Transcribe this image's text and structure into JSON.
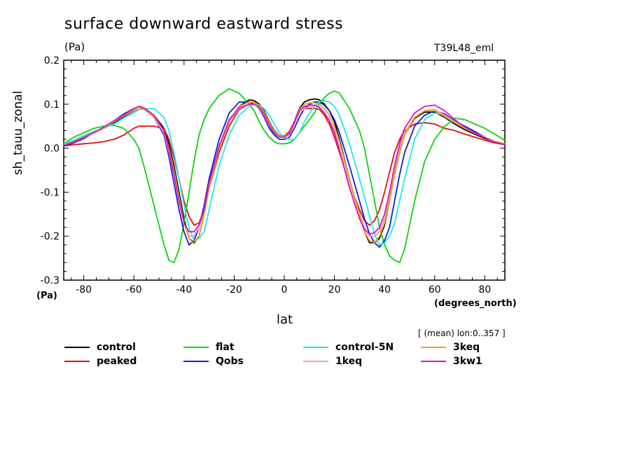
{
  "title": "surface downward eastward stress",
  "units_label": "(Pa)",
  "run_label": "T39L48_eml",
  "region_note": "[ (mean) lon:0..357 ]",
  "chart_data": {
    "type": "line",
    "title": "surface downward eastward stress",
    "xlabel": "lat",
    "xunits": "(degrees_north)",
    "ylabel": "sh_tauu_zonal",
    "yunits": "(Pa)",
    "xlim": [
      -88,
      88
    ],
    "ylim": [
      -0.3,
      0.2
    ],
    "xticks": [
      -80,
      -60,
      -40,
      -20,
      0,
      20,
      40,
      60,
      80
    ],
    "yticks": [
      -0.3,
      -0.2,
      -0.1,
      0.0,
      0.1,
      0.2
    ],
    "ytick_labels": [
      "-0.3",
      "-0.2",
      "-0.1",
      "0.0",
      "0.1",
      "0.2"
    ],
    "x": [
      -88,
      -84,
      -80,
      -76,
      -72,
      -68,
      -64,
      -60,
      -58,
      -56,
      -52,
      -48,
      -46,
      -44,
      -42,
      -40,
      -38,
      -36,
      -34,
      -32,
      -30,
      -26,
      -22,
      -18,
      -14,
      -12,
      -10,
      -8,
      -6,
      -4,
      -2,
      0,
      2,
      4,
      6,
      8,
      10,
      12,
      14,
      16,
      18,
      20,
      22,
      26,
      30,
      32,
      34,
      36,
      38,
      40,
      42,
      44,
      46,
      48,
      52,
      56,
      60,
      64,
      68,
      72,
      76,
      80,
      84,
      88
    ],
    "series": [
      {
        "name": "control",
        "color": "#000000",
        "values": [
          0.008,
          0.015,
          0.025,
          0.035,
          0.045,
          0.058,
          0.072,
          0.085,
          0.09,
          0.088,
          0.075,
          0.045,
          0.01,
          -0.04,
          -0.1,
          -0.16,
          -0.205,
          -0.215,
          -0.2,
          -0.15,
          -0.09,
          0.0,
          0.06,
          0.095,
          0.11,
          0.108,
          0.1,
          0.085,
          0.06,
          0.04,
          0.028,
          0.028,
          0.035,
          0.06,
          0.09,
          0.105,
          0.11,
          0.112,
          0.11,
          0.1,
          0.085,
          0.06,
          0.02,
          -0.07,
          -0.15,
          -0.19,
          -0.215,
          -0.215,
          -0.205,
          -0.175,
          -0.12,
          -0.06,
          -0.01,
          0.03,
          0.068,
          0.082,
          0.082,
          0.07,
          0.055,
          0.042,
          0.032,
          0.022,
          0.015,
          0.01
        ]
      },
      {
        "name": "peaked",
        "color": "#e01010",
        "values": [
          0.005,
          0.008,
          0.01,
          0.012,
          0.015,
          0.02,
          0.03,
          0.045,
          0.05,
          0.05,
          0.05,
          0.045,
          0.02,
          -0.02,
          -0.07,
          -0.12,
          -0.155,
          -0.175,
          -0.17,
          -0.14,
          -0.09,
          -0.01,
          0.05,
          0.088,
          0.1,
          0.1,
          0.095,
          0.08,
          0.055,
          0.038,
          0.028,
          0.028,
          0.038,
          0.06,
          0.08,
          0.09,
          0.09,
          0.09,
          0.088,
          0.075,
          0.055,
          0.025,
          -0.01,
          -0.08,
          -0.14,
          -0.165,
          -0.175,
          -0.165,
          -0.14,
          -0.1,
          -0.055,
          -0.01,
          0.02,
          0.04,
          0.055,
          0.058,
          0.055,
          0.045,
          0.04,
          0.032,
          0.025,
          0.018,
          0.012,
          0.008
        ]
      },
      {
        "name": "flat",
        "color": "#10d010",
        "values": [
          0.01,
          0.025,
          0.035,
          0.045,
          0.05,
          0.052,
          0.045,
          0.02,
          0.0,
          -0.04,
          -0.13,
          -0.22,
          -0.255,
          -0.26,
          -0.23,
          -0.17,
          -0.1,
          -0.03,
          0.03,
          0.065,
          0.09,
          0.12,
          0.135,
          0.125,
          0.1,
          0.085,
          0.06,
          0.04,
          0.025,
          0.015,
          0.01,
          0.01,
          0.012,
          0.02,
          0.035,
          0.05,
          0.065,
          0.08,
          0.1,
          0.115,
          0.125,
          0.13,
          0.125,
          0.09,
          0.04,
          0.0,
          -0.06,
          -0.12,
          -0.18,
          -0.22,
          -0.245,
          -0.255,
          -0.26,
          -0.23,
          -0.12,
          -0.03,
          0.02,
          0.05,
          0.068,
          0.065,
          0.055,
          0.045,
          0.032,
          0.018
        ]
      },
      {
        "name": "Qobs",
        "color": "#1020d0",
        "values": [
          0.005,
          0.012,
          0.022,
          0.035,
          0.048,
          0.062,
          0.078,
          0.09,
          0.095,
          0.09,
          0.07,
          0.03,
          -0.02,
          -0.08,
          -0.14,
          -0.19,
          -0.22,
          -0.21,
          -0.18,
          -0.13,
          -0.07,
          0.02,
          0.08,
          0.105,
          0.105,
          0.1,
          0.09,
          0.07,
          0.045,
          0.03,
          0.02,
          0.02,
          0.025,
          0.045,
          0.07,
          0.09,
          0.1,
          0.105,
          0.105,
          0.098,
          0.085,
          0.065,
          0.035,
          -0.04,
          -0.12,
          -0.16,
          -0.195,
          -0.215,
          -0.225,
          -0.21,
          -0.18,
          -0.12,
          -0.06,
          -0.01,
          0.05,
          0.075,
          0.085,
          0.078,
          0.062,
          0.05,
          0.038,
          0.025,
          0.015,
          0.008
        ]
      },
      {
        "name": "control-5N",
        "color": "#20e8e8",
        "values": [
          0.01,
          0.018,
          0.028,
          0.038,
          0.045,
          0.055,
          0.068,
          0.08,
          0.088,
          0.09,
          0.09,
          0.07,
          0.04,
          -0.01,
          -0.07,
          -0.13,
          -0.18,
          -0.21,
          -0.205,
          -0.19,
          -0.14,
          -0.04,
          0.03,
          0.075,
          0.095,
          0.1,
          0.098,
          0.09,
          0.075,
          0.055,
          0.035,
          0.025,
          0.02,
          0.02,
          0.035,
          0.06,
          0.08,
          0.095,
          0.105,
          0.108,
          0.105,
          0.095,
          0.075,
          0.01,
          -0.07,
          -0.11,
          -0.155,
          -0.195,
          -0.22,
          -0.215,
          -0.2,
          -0.17,
          -0.12,
          -0.07,
          0.02,
          0.065,
          0.08,
          0.075,
          0.06,
          0.048,
          0.035,
          0.025,
          0.015,
          0.01
        ]
      },
      {
        "name": "1keq",
        "color": "#e8a0d8",
        "values": [
          0.006,
          0.014,
          0.024,
          0.034,
          0.046,
          0.06,
          0.074,
          0.086,
          0.09,
          0.088,
          0.07,
          0.035,
          -0.01,
          -0.06,
          -0.12,
          -0.17,
          -0.2,
          -0.2,
          -0.18,
          -0.14,
          -0.08,
          0.0,
          0.06,
          0.09,
          0.1,
          0.098,
          0.092,
          0.075,
          0.05,
          0.035,
          0.026,
          0.026,
          0.032,
          0.055,
          0.08,
          0.09,
          0.094,
          0.095,
          0.092,
          0.08,
          0.065,
          0.04,
          0.0,
          -0.08,
          -0.15,
          -0.18,
          -0.2,
          -0.2,
          -0.19,
          -0.16,
          -0.11,
          -0.05,
          0.0,
          0.035,
          0.07,
          0.085,
          0.088,
          0.075,
          0.06,
          0.045,
          0.035,
          0.025,
          0.015,
          0.01
        ]
      },
      {
        "name": "3keq",
        "color": "#e8a810",
        "values": [
          0.007,
          0.015,
          0.025,
          0.035,
          0.046,
          0.06,
          0.074,
          0.087,
          0.09,
          0.088,
          0.072,
          0.04,
          0.0,
          -0.05,
          -0.11,
          -0.17,
          -0.205,
          -0.218,
          -0.2,
          -0.15,
          -0.09,
          0.0,
          0.06,
          0.095,
          0.105,
          0.104,
          0.098,
          0.083,
          0.058,
          0.038,
          0.027,
          0.027,
          0.034,
          0.058,
          0.088,
          0.1,
          0.103,
          0.103,
          0.1,
          0.09,
          0.075,
          0.05,
          0.015,
          -0.07,
          -0.15,
          -0.19,
          -0.21,
          -0.215,
          -0.2,
          -0.17,
          -0.12,
          -0.06,
          -0.01,
          0.03,
          0.07,
          0.085,
          0.085,
          0.072,
          0.058,
          0.045,
          0.034,
          0.024,
          0.015,
          0.01
        ]
      },
      {
        "name": "3kw1",
        "color": "#e010c8",
        "values": [
          0.006,
          0.014,
          0.024,
          0.036,
          0.048,
          0.062,
          0.076,
          0.09,
          0.095,
          0.092,
          0.075,
          0.04,
          -0.005,
          -0.06,
          -0.12,
          -0.17,
          -0.19,
          -0.19,
          -0.175,
          -0.14,
          -0.08,
          0.005,
          0.065,
          0.092,
          0.1,
          0.1,
          0.094,
          0.078,
          0.052,
          0.034,
          0.025,
          0.025,
          0.032,
          0.058,
          0.085,
          0.095,
          0.098,
          0.098,
          0.093,
          0.08,
          0.062,
          0.035,
          -0.005,
          -0.09,
          -0.16,
          -0.185,
          -0.195,
          -0.192,
          -0.18,
          -0.15,
          -0.1,
          -0.04,
          0.01,
          0.045,
          0.08,
          0.095,
          0.098,
          0.085,
          0.065,
          0.048,
          0.035,
          0.024,
          0.014,
          0.008
        ]
      }
    ]
  }
}
